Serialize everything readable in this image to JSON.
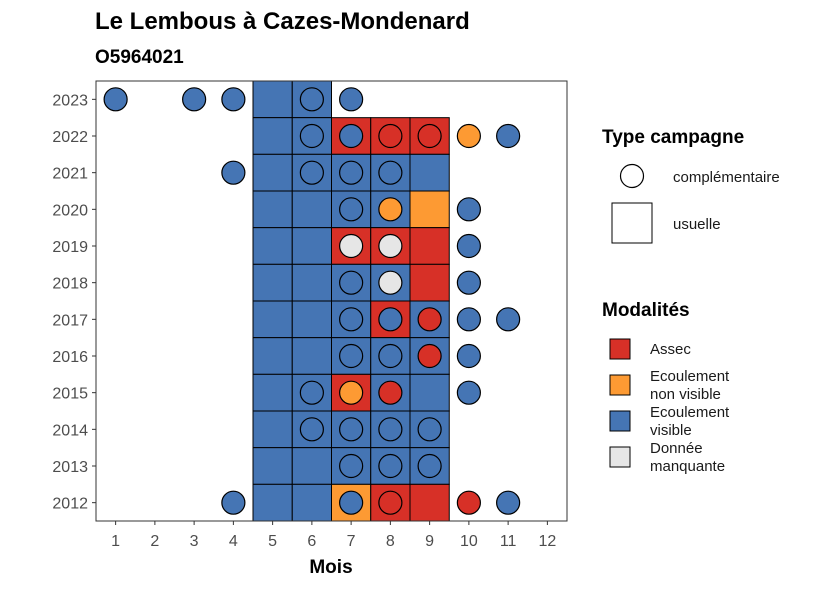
{
  "chart_data": {
    "type": "heatmap",
    "title": "Le Lembous à Cazes-Mondenard",
    "subtitle": "O5964021",
    "xlabel": "Mois",
    "ylabel": "",
    "x_ticks": [
      "1",
      "2",
      "3",
      "4",
      "5",
      "6",
      "7",
      "8",
      "9",
      "10",
      "11",
      "12"
    ],
    "y_ticks": [
      "2012",
      "2013",
      "2014",
      "2015",
      "2016",
      "2017",
      "2018",
      "2019",
      "2020",
      "2021",
      "2022",
      "2023"
    ],
    "xlim": [
      0.5,
      12.5
    ],
    "ylim": [
      2011.5,
      2023.5
    ],
    "colors": {
      "Assec": "#d73027",
      "Ecoulement non visible": "#fd9a33",
      "Ecoulement visible": "#4575b4",
      "Donnée manquante": "#e6e6e6"
    },
    "legend_type": {
      "title": "Type campagne",
      "items": [
        {
          "label": "complémentaire",
          "shape": "circle"
        },
        {
          "label": "usuelle",
          "shape": "square"
        }
      ]
    },
    "legend_modalites": {
      "title": "Modalités",
      "items": [
        {
          "label_lines": [
            "Assec"
          ],
          "key": "Assec"
        },
        {
          "label_lines": [
            "Ecoulement",
            "non visible"
          ],
          "key": "Ecoulement non visible"
        },
        {
          "label_lines": [
            "Ecoulement",
            "visible"
          ],
          "key": "Ecoulement visible"
        },
        {
          "label_lines": [
            "Donnée",
            "manquante"
          ],
          "key": "Donnée manquante"
        }
      ]
    },
    "usuelle": [
      {
        "year": 2023,
        "month": 5,
        "value": "Ecoulement visible"
      },
      {
        "year": 2023,
        "month": 6,
        "value": "Ecoulement visible"
      },
      {
        "year": 2022,
        "month": 5,
        "value": "Ecoulement visible"
      },
      {
        "year": 2022,
        "month": 6,
        "value": "Ecoulement visible"
      },
      {
        "year": 2022,
        "month": 7,
        "value": "Assec"
      },
      {
        "year": 2022,
        "month": 8,
        "value": "Assec"
      },
      {
        "year": 2022,
        "month": 9,
        "value": "Assec"
      },
      {
        "year": 2021,
        "month": 5,
        "value": "Ecoulement visible"
      },
      {
        "year": 2021,
        "month": 6,
        "value": "Ecoulement visible"
      },
      {
        "year": 2021,
        "month": 7,
        "value": "Ecoulement visible"
      },
      {
        "year": 2021,
        "month": 8,
        "value": "Ecoulement visible"
      },
      {
        "year": 2021,
        "month": 9,
        "value": "Ecoulement visible"
      },
      {
        "year": 2020,
        "month": 5,
        "value": "Ecoulement visible"
      },
      {
        "year": 2020,
        "month": 6,
        "value": "Ecoulement visible"
      },
      {
        "year": 2020,
        "month": 7,
        "value": "Ecoulement visible"
      },
      {
        "year": 2020,
        "month": 8,
        "value": "Ecoulement visible"
      },
      {
        "year": 2020,
        "month": 9,
        "value": "Ecoulement non visible"
      },
      {
        "year": 2019,
        "month": 5,
        "value": "Ecoulement visible"
      },
      {
        "year": 2019,
        "month": 6,
        "value": "Ecoulement visible"
      },
      {
        "year": 2019,
        "month": 7,
        "value": "Assec"
      },
      {
        "year": 2019,
        "month": 8,
        "value": "Assec"
      },
      {
        "year": 2019,
        "month": 9,
        "value": "Assec"
      },
      {
        "year": 2018,
        "month": 5,
        "value": "Ecoulement visible"
      },
      {
        "year": 2018,
        "month": 6,
        "value": "Ecoulement visible"
      },
      {
        "year": 2018,
        "month": 7,
        "value": "Ecoulement visible"
      },
      {
        "year": 2018,
        "month": 8,
        "value": "Ecoulement visible"
      },
      {
        "year": 2018,
        "month": 9,
        "value": "Assec"
      },
      {
        "year": 2017,
        "month": 5,
        "value": "Ecoulement visible"
      },
      {
        "year": 2017,
        "month": 6,
        "value": "Ecoulement visible"
      },
      {
        "year": 2017,
        "month": 7,
        "value": "Ecoulement visible"
      },
      {
        "year": 2017,
        "month": 8,
        "value": "Assec"
      },
      {
        "year": 2017,
        "month": 9,
        "value": "Ecoulement visible"
      },
      {
        "year": 2016,
        "month": 5,
        "value": "Ecoulement visible"
      },
      {
        "year": 2016,
        "month": 6,
        "value": "Ecoulement visible"
      },
      {
        "year": 2016,
        "month": 7,
        "value": "Ecoulement visible"
      },
      {
        "year": 2016,
        "month": 8,
        "value": "Ecoulement visible"
      },
      {
        "year": 2016,
        "month": 9,
        "value": "Ecoulement visible"
      },
      {
        "year": 2015,
        "month": 5,
        "value": "Ecoulement visible"
      },
      {
        "year": 2015,
        "month": 6,
        "value": "Ecoulement visible"
      },
      {
        "year": 2015,
        "month": 7,
        "value": "Assec"
      },
      {
        "year": 2015,
        "month": 8,
        "value": "Ecoulement visible"
      },
      {
        "year": 2015,
        "month": 9,
        "value": "Ecoulement visible"
      },
      {
        "year": 2014,
        "month": 5,
        "value": "Ecoulement visible"
      },
      {
        "year": 2014,
        "month": 6,
        "value": "Ecoulement visible"
      },
      {
        "year": 2014,
        "month": 7,
        "value": "Ecoulement visible"
      },
      {
        "year": 2014,
        "month": 8,
        "value": "Ecoulement visible"
      },
      {
        "year": 2014,
        "month": 9,
        "value": "Ecoulement visible"
      },
      {
        "year": 2013,
        "month": 5,
        "value": "Ecoulement visible"
      },
      {
        "year": 2013,
        "month": 6,
        "value": "Ecoulement visible"
      },
      {
        "year": 2013,
        "month": 7,
        "value": "Ecoulement visible"
      },
      {
        "year": 2013,
        "month": 8,
        "value": "Ecoulement visible"
      },
      {
        "year": 2013,
        "month": 9,
        "value": "Ecoulement visible"
      },
      {
        "year": 2012,
        "month": 5,
        "value": "Ecoulement visible"
      },
      {
        "year": 2012,
        "month": 6,
        "value": "Ecoulement visible"
      },
      {
        "year": 2012,
        "month": 7,
        "value": "Ecoulement non visible"
      },
      {
        "year": 2012,
        "month": 8,
        "value": "Assec"
      },
      {
        "year": 2012,
        "month": 9,
        "value": "Assec"
      }
    ],
    "complementaire": [
      {
        "year": 2023,
        "month": 1,
        "value": "Ecoulement visible"
      },
      {
        "year": 2023,
        "month": 3,
        "value": "Ecoulement visible"
      },
      {
        "year": 2023,
        "month": 4,
        "value": "Ecoulement visible"
      },
      {
        "year": 2023,
        "month": 6,
        "value": "Ecoulement visible"
      },
      {
        "year": 2023,
        "month": 7,
        "value": "Ecoulement visible"
      },
      {
        "year": 2022,
        "month": 6,
        "value": "Ecoulement visible"
      },
      {
        "year": 2022,
        "month": 7,
        "value": "Ecoulement visible"
      },
      {
        "year": 2022,
        "month": 8,
        "value": "Assec"
      },
      {
        "year": 2022,
        "month": 9,
        "value": "Assec"
      },
      {
        "year": 2022,
        "month": 10,
        "value": "Ecoulement non visible"
      },
      {
        "year": 2022,
        "month": 11,
        "value": "Ecoulement visible"
      },
      {
        "year": 2021,
        "month": 4,
        "value": "Ecoulement visible"
      },
      {
        "year": 2021,
        "month": 6,
        "value": "Ecoulement visible"
      },
      {
        "year": 2021,
        "month": 7,
        "value": "Ecoulement visible"
      },
      {
        "year": 2021,
        "month": 8,
        "value": "Ecoulement visible"
      },
      {
        "year": 2020,
        "month": 7,
        "value": "Ecoulement visible"
      },
      {
        "year": 2020,
        "month": 8,
        "value": "Ecoulement non visible"
      },
      {
        "year": 2020,
        "month": 10,
        "value": "Ecoulement visible"
      },
      {
        "year": 2019,
        "month": 7,
        "value": "Donnée manquante"
      },
      {
        "year": 2019,
        "month": 8,
        "value": "Donnée manquante"
      },
      {
        "year": 2019,
        "month": 10,
        "value": "Ecoulement visible"
      },
      {
        "year": 2018,
        "month": 7,
        "value": "Ecoulement visible"
      },
      {
        "year": 2018,
        "month": 8,
        "value": "Donnée manquante"
      },
      {
        "year": 2018,
        "month": 10,
        "value": "Ecoulement visible"
      },
      {
        "year": 2017,
        "month": 7,
        "value": "Ecoulement visible"
      },
      {
        "year": 2017,
        "month": 8,
        "value": "Ecoulement visible"
      },
      {
        "year": 2017,
        "month": 9,
        "value": "Assec"
      },
      {
        "year": 2017,
        "month": 10,
        "value": "Ecoulement visible"
      },
      {
        "year": 2017,
        "month": 11,
        "value": "Ecoulement visible"
      },
      {
        "year": 2016,
        "month": 7,
        "value": "Ecoulement visible"
      },
      {
        "year": 2016,
        "month": 8,
        "value": "Ecoulement visible"
      },
      {
        "year": 2016,
        "month": 9,
        "value": "Assec"
      },
      {
        "year": 2016,
        "month": 10,
        "value": "Ecoulement visible"
      },
      {
        "year": 2015,
        "month": 6,
        "value": "Ecoulement visible"
      },
      {
        "year": 2015,
        "month": 7,
        "value": "Ecoulement non visible"
      },
      {
        "year": 2015,
        "month": 8,
        "value": "Assec"
      },
      {
        "year": 2015,
        "month": 10,
        "value": "Ecoulement visible"
      },
      {
        "year": 2014,
        "month": 6,
        "value": "Ecoulement visible"
      },
      {
        "year": 2014,
        "month": 7,
        "value": "Ecoulement visible"
      },
      {
        "year": 2014,
        "month": 8,
        "value": "Ecoulement visible"
      },
      {
        "year": 2014,
        "month": 9,
        "value": "Ecoulement visible"
      },
      {
        "year": 2013,
        "month": 7,
        "value": "Ecoulement visible"
      },
      {
        "year": 2013,
        "month": 8,
        "value": "Ecoulement visible"
      },
      {
        "year": 2013,
        "month": 9,
        "value": "Ecoulement visible"
      },
      {
        "year": 2012,
        "month": 4,
        "value": "Ecoulement visible"
      },
      {
        "year": 2012,
        "month": 7,
        "value": "Ecoulement visible"
      },
      {
        "year": 2012,
        "month": 8,
        "value": "Assec"
      },
      {
        "year": 2012,
        "month": 10,
        "value": "Assec"
      },
      {
        "year": 2012,
        "month": 11,
        "value": "Ecoulement visible"
      }
    ]
  }
}
